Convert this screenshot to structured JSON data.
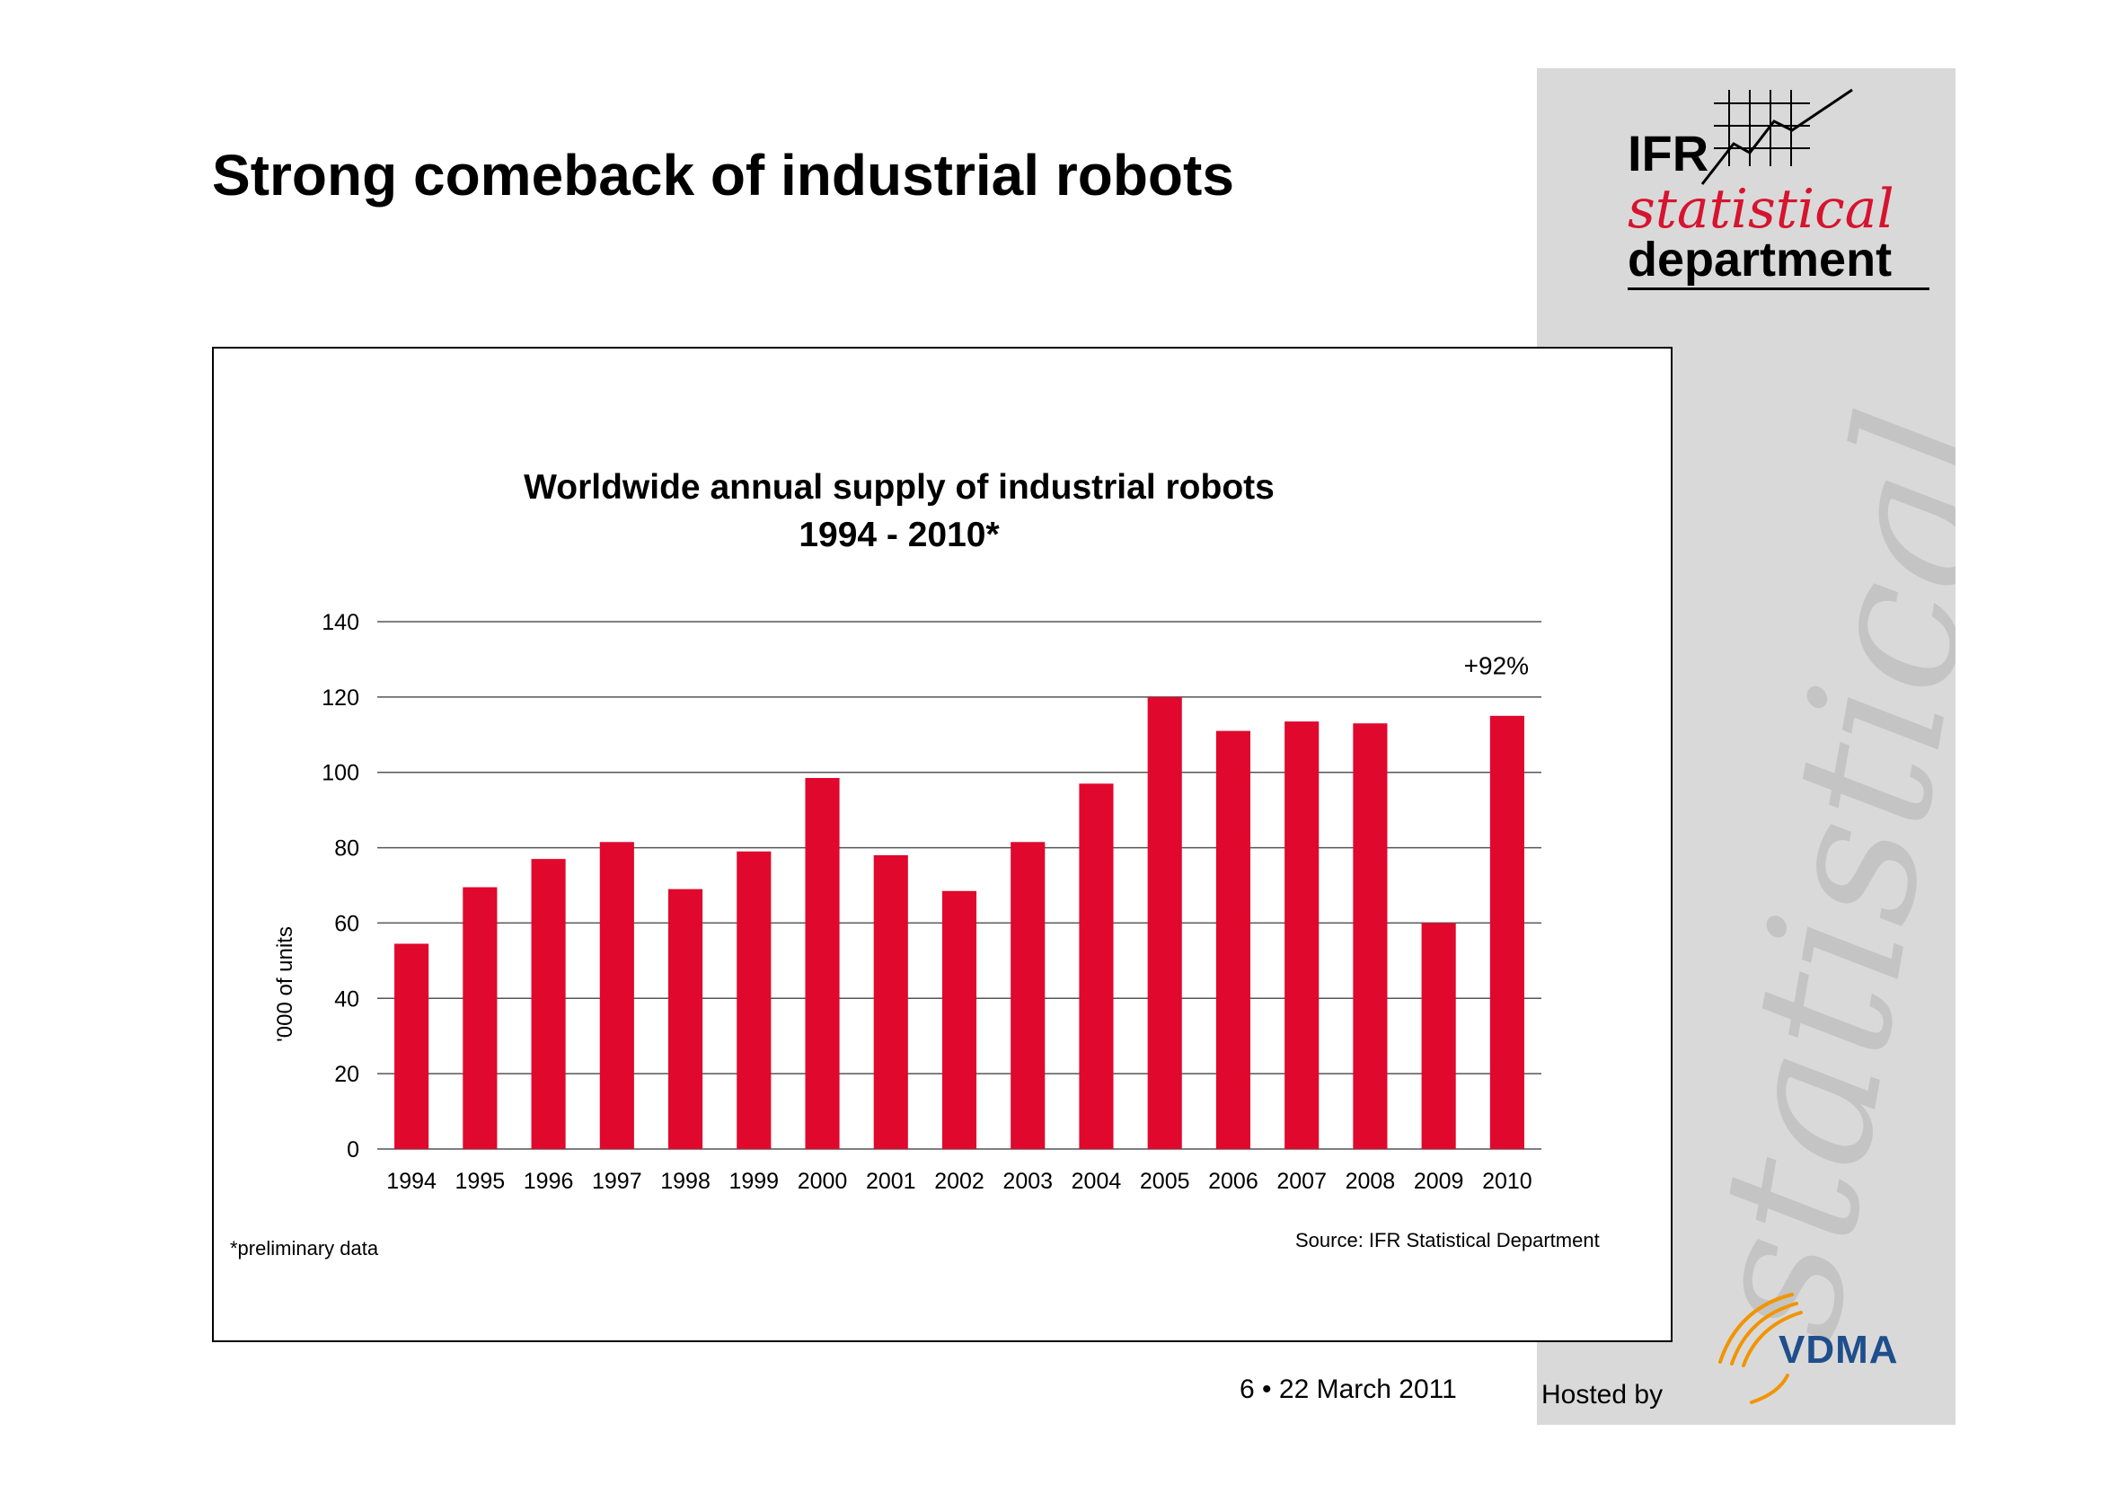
{
  "slide": {
    "title": "Strong comeback of industrial robots",
    "page_number": "6",
    "separator": "•",
    "date": "22 March 2011",
    "hosted_by": "Hosted by"
  },
  "branding": {
    "ifr_word": "IFR",
    "ifr_script": "statistical",
    "ifr_department": "department",
    "watermark_text": "statistical",
    "vdma_word": "VDMA",
    "colors": {
      "panel": "#d9d9d9",
      "script_red": "#d6142f",
      "vdma_blue": "#1f4e8c",
      "vdma_orange": "#f29400"
    }
  },
  "chart_data": {
    "type": "bar",
    "title": "Worldwide annual supply of industrial robots",
    "subtitle": "1994 - 2010*",
    "ylabel": "'000 of units",
    "xlabel": "",
    "ylim": [
      0,
      140
    ],
    "yticks": [
      0,
      20,
      40,
      60,
      80,
      100,
      120,
      140
    ],
    "grid": true,
    "bar_color": "#e0082d",
    "categories": [
      "1994",
      "1995",
      "1996",
      "1997",
      "1998",
      "1999",
      "2000",
      "2001",
      "2002",
      "2003",
      "2004",
      "2005",
      "2006",
      "2007",
      "2008",
      "2009",
      "2010"
    ],
    "values": [
      54.5,
      69.5,
      77.0,
      81.5,
      69.0,
      79.0,
      98.5,
      78.0,
      68.5,
      81.5,
      97.0,
      120.0,
      111.0,
      113.5,
      113.0,
      60.0,
      115.0
    ],
    "annotation": "+92%",
    "footnote": "*preliminary data",
    "source": "Source: IFR Statistical Department"
  }
}
